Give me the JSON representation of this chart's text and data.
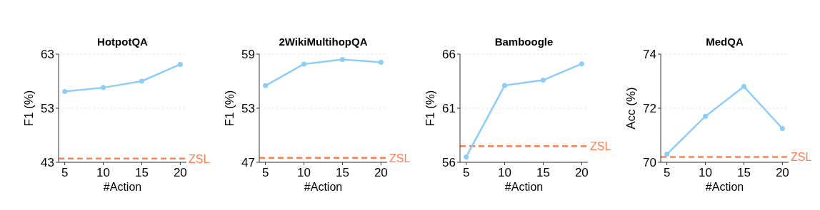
{
  "chart_data": [
    {
      "type": "line",
      "title": "HotpotQA",
      "xlabel": "#Action",
      "ylabel": "F1 (%)",
      "x": [
        5,
        10,
        15,
        20
      ],
      "xlim": [
        4.2,
        20.8
      ],
      "xticks": [
        5,
        10,
        15,
        20
      ],
      "ylim": [
        43,
        63
      ],
      "yticks": [
        43,
        53,
        63
      ],
      "grid": "y",
      "marker": "circle",
      "line_style": "solid",
      "series": [
        {
          "color": "#8ecdf8",
          "values": [
            56.1,
            56.8,
            58.0,
            61.1
          ]
        }
      ],
      "ref_lines": [
        {
          "axis": "y",
          "value": 43.7,
          "label": "ZSL",
          "color": "#ff7f50",
          "line_style": "dashed"
        }
      ]
    },
    {
      "type": "line",
      "title": "2WikiMultihopQA",
      "xlabel": "#Action",
      "ylabel": "F1 (%)",
      "x": [
        5,
        10,
        15,
        20
      ],
      "xlim": [
        4.2,
        20.8
      ],
      "xticks": [
        5,
        10,
        15,
        20
      ],
      "ylim": [
        47,
        59
      ],
      "yticks": [
        47,
        53,
        59
      ],
      "grid": "y",
      "marker": "circle",
      "line_style": "solid",
      "series": [
        {
          "color": "#8ecdf8",
          "values": [
            55.5,
            57.9,
            58.4,
            58.1
          ]
        }
      ],
      "ref_lines": [
        {
          "axis": "y",
          "value": 47.5,
          "label": "ZSL",
          "color": "#ff7f50",
          "line_style": "dashed"
        }
      ]
    },
    {
      "type": "line",
      "title": "Bamboogle",
      "xlabel": "#Action",
      "ylabel": "F1 (%)",
      "x": [
        5,
        10,
        15,
        20
      ],
      "xlim": [
        4.2,
        20.8
      ],
      "xticks": [
        5,
        10,
        15,
        20
      ],
      "ylim": [
        56,
        66
      ],
      "yticks": [
        56,
        61,
        66
      ],
      "grid": "y",
      "marker": "circle",
      "line_style": "solid",
      "series": [
        {
          "color": "#8ecdf8",
          "values": [
            56.5,
            63.1,
            63.6,
            65.1
          ]
        }
      ],
      "ref_lines": [
        {
          "axis": "y",
          "value": 57.5,
          "label": "ZSL",
          "color": "#ff7f50",
          "line_style": "dashed"
        }
      ]
    },
    {
      "type": "line",
      "title": "MedQA",
      "xlabel": "#Action",
      "ylabel": "Acc (%)",
      "x": [
        5,
        10,
        15,
        20
      ],
      "xlim": [
        4.2,
        20.8
      ],
      "xticks": [
        5,
        10,
        15,
        20
      ],
      "ylim": [
        70,
        74
      ],
      "yticks": [
        70,
        72,
        74
      ],
      "grid": "y",
      "marker": "circle",
      "line_style": "solid",
      "series": [
        {
          "color": "#8ecdf8",
          "values": [
            70.3,
            71.7,
            72.8,
            71.25
          ]
        }
      ],
      "ref_lines": [
        {
          "axis": "y",
          "value": 70.2,
          "label": "ZSL",
          "color": "#ff7f50",
          "line_style": "dashed"
        }
      ]
    }
  ]
}
